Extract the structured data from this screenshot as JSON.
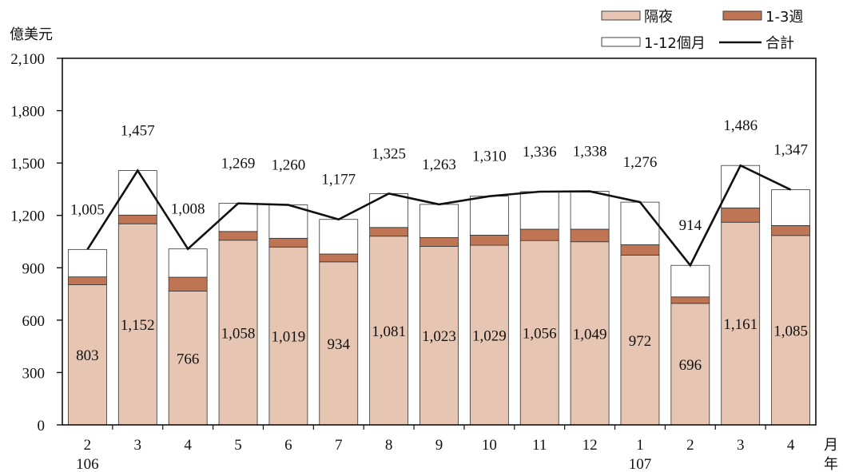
{
  "chart_data": {
    "type": "bar",
    "stacked": true,
    "ylabel": "億美元",
    "x_unit": "月",
    "year_unit": "年",
    "ylim": [
      0,
      2100
    ],
    "yticks": [
      "0",
      "300",
      "600",
      "900",
      "1,200",
      "1,500",
      "1,800",
      "2,100"
    ],
    "categories": [
      "2",
      "3",
      "4",
      "5",
      "6",
      "7",
      "8",
      "9",
      "10",
      "11",
      "12",
      "1",
      "2",
      "3",
      "4"
    ],
    "year_labels": [
      {
        "category_index": 0,
        "label": "106"
      },
      {
        "category_index": 11,
        "label": "107"
      }
    ],
    "series": [
      {
        "name": "隔夜",
        "color": "#e6c5b2",
        "values": [
          803,
          1152,
          766,
          1058,
          1019,
          934,
          1081,
          1023,
          1029,
          1056,
          1049,
          972,
          696,
          1161,
          1085
        ],
        "labels": [
          "803",
          "1,152",
          "766",
          "1,058",
          "1,019",
          "934",
          "1,081",
          "1,023",
          "1,029",
          "1,056",
          "1,049",
          "972",
          "696",
          "1,161",
          "1,085"
        ]
      },
      {
        "name": "1-3週",
        "color": "#bf7454",
        "values": [
          45,
          50,
          80,
          50,
          50,
          45,
          50,
          50,
          58,
          65,
          72,
          60,
          37,
          82,
          57
        ]
      },
      {
        "name": "1-12個月",
        "color": "#ffffff",
        "values": [
          157,
          255,
          162,
          161,
          191,
          198,
          194,
          190,
          223,
          215,
          217,
          244,
          181,
          243,
          205
        ]
      },
      {
        "name": "合計",
        "type": "line",
        "color": "#111111",
        "values": [
          1005,
          1457,
          1008,
          1269,
          1260,
          1177,
          1325,
          1263,
          1310,
          1336,
          1338,
          1276,
          914,
          1486,
          1347
        ],
        "labels": [
          "1,005",
          "1,457",
          "1,008",
          "1,269",
          "1,260",
          "1,177",
          "1,325",
          "1,263",
          "1,310",
          "1,336",
          "1,338",
          "1,276",
          "914",
          "1,486",
          "1,347"
        ]
      }
    ],
    "legend_position": "top-right"
  }
}
